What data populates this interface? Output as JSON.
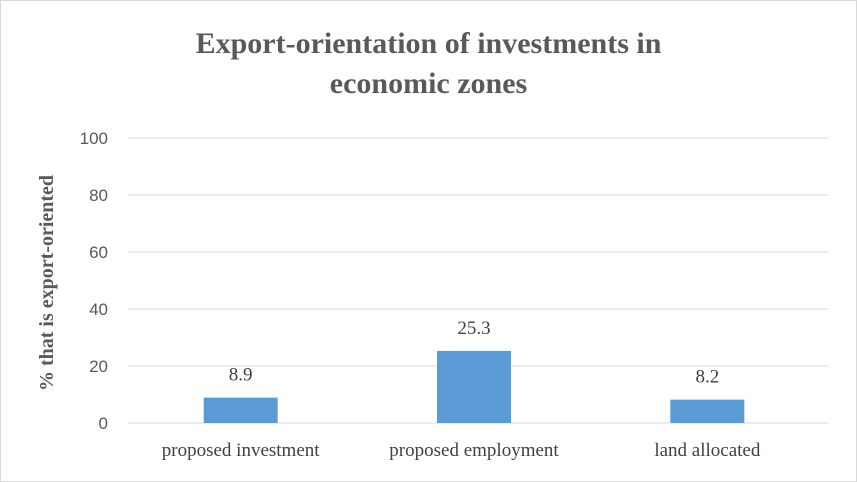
{
  "chart_data": {
    "type": "bar",
    "title": [
      "Export-orientation  of investments in",
      "economic zones"
    ],
    "ylabel": "% that is export-oriented",
    "xlabel": "",
    "categories": [
      "proposed investment",
      "proposed employment",
      "land allocated"
    ],
    "values": [
      8.9,
      25.3,
      8.2
    ],
    "data_labels": [
      "8.9",
      "25.3",
      "8.2"
    ],
    "ylim": [
      0,
      100
    ],
    "yticks": [
      0,
      20,
      40,
      60,
      80,
      100
    ],
    "grid": true,
    "legend": "none",
    "bar_color": "#5b9bd5",
    "grid_color": "#d9d9d9"
  }
}
